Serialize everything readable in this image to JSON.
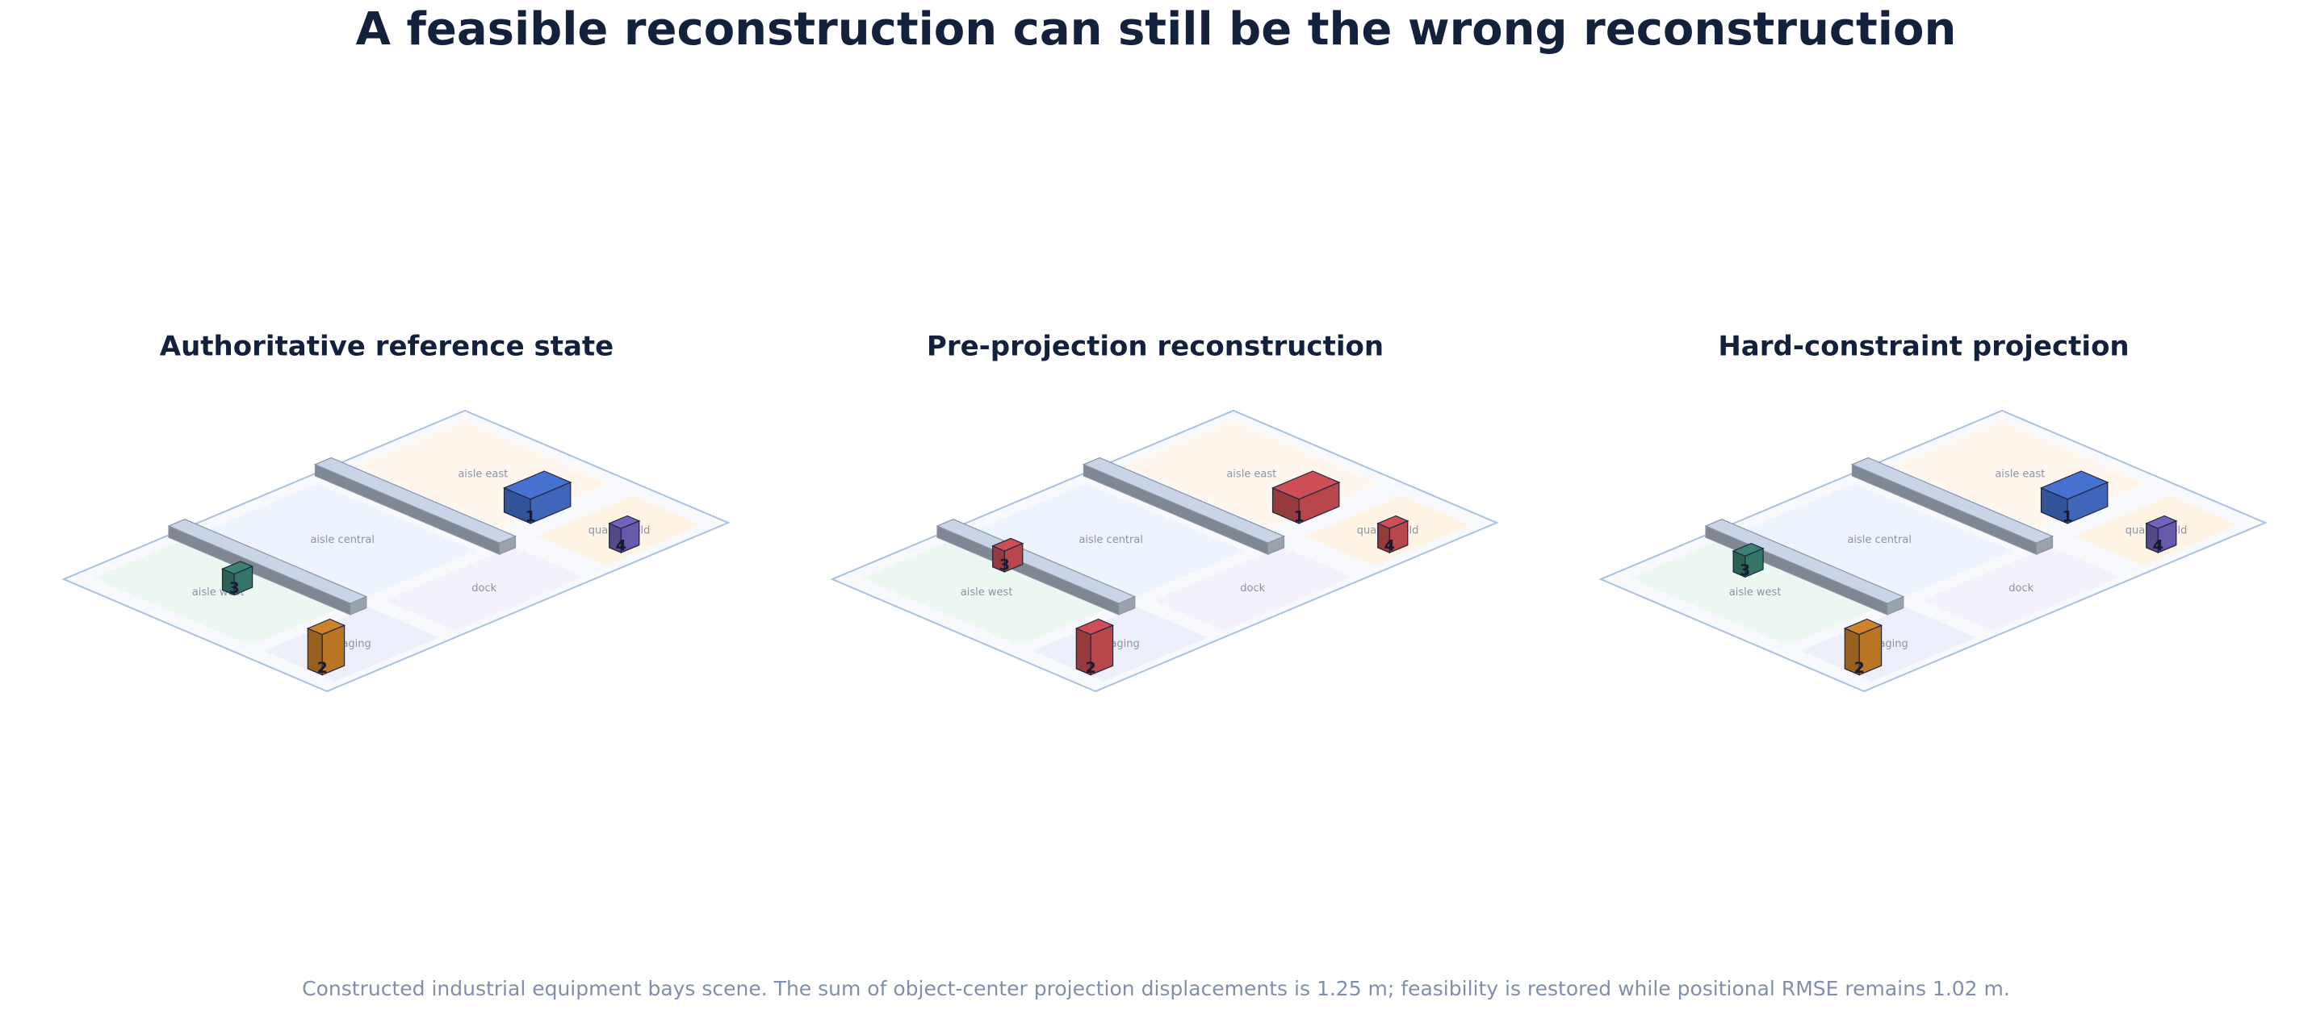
{
  "title": "A feasible reconstruction can still be the wrong reconstruction",
  "panels": [
    {
      "title": "Authoritative reference state",
      "zones": [
        "aisle west",
        "staging",
        "aisle central",
        "dock",
        "aisle east",
        "quality hold"
      ],
      "objects": [
        {
          "label": "1",
          "color": "#4a78dc"
        },
        {
          "label": "2",
          "color": "#d98a2b"
        },
        {
          "label": "3",
          "color": "#3f8a7a"
        },
        {
          "label": "4",
          "color": "#7b69c8"
        }
      ]
    },
    {
      "title": "Pre-projection reconstruction",
      "zones": [
        "aisle west",
        "staging",
        "aisle central",
        "dock",
        "aisle east",
        "quality hold"
      ],
      "objects": [
        {
          "label": "1",
          "color": "#d9545a"
        },
        {
          "label": "2",
          "color": "#d9545a"
        },
        {
          "label": "3",
          "color": "#d9545a"
        },
        {
          "label": "4",
          "color": "#d9545a"
        }
      ]
    },
    {
      "title": "Hard-constraint projection",
      "zones": [
        "aisle west",
        "staging",
        "aisle central",
        "dock",
        "aisle east",
        "quality hold"
      ],
      "objects": [
        {
          "label": "1",
          "color": "#4a78dc"
        },
        {
          "label": "2",
          "color": "#d98a2b"
        },
        {
          "label": "3",
          "color": "#3f8a7a"
        },
        {
          "label": "4",
          "color": "#7b69c8"
        }
      ]
    }
  ],
  "caption": "Constructed industrial equipment bays scene. The sum of object-center projection displacements is 1.25 m; feasibility is restored while positional RMSE remains 1.02 m."
}
